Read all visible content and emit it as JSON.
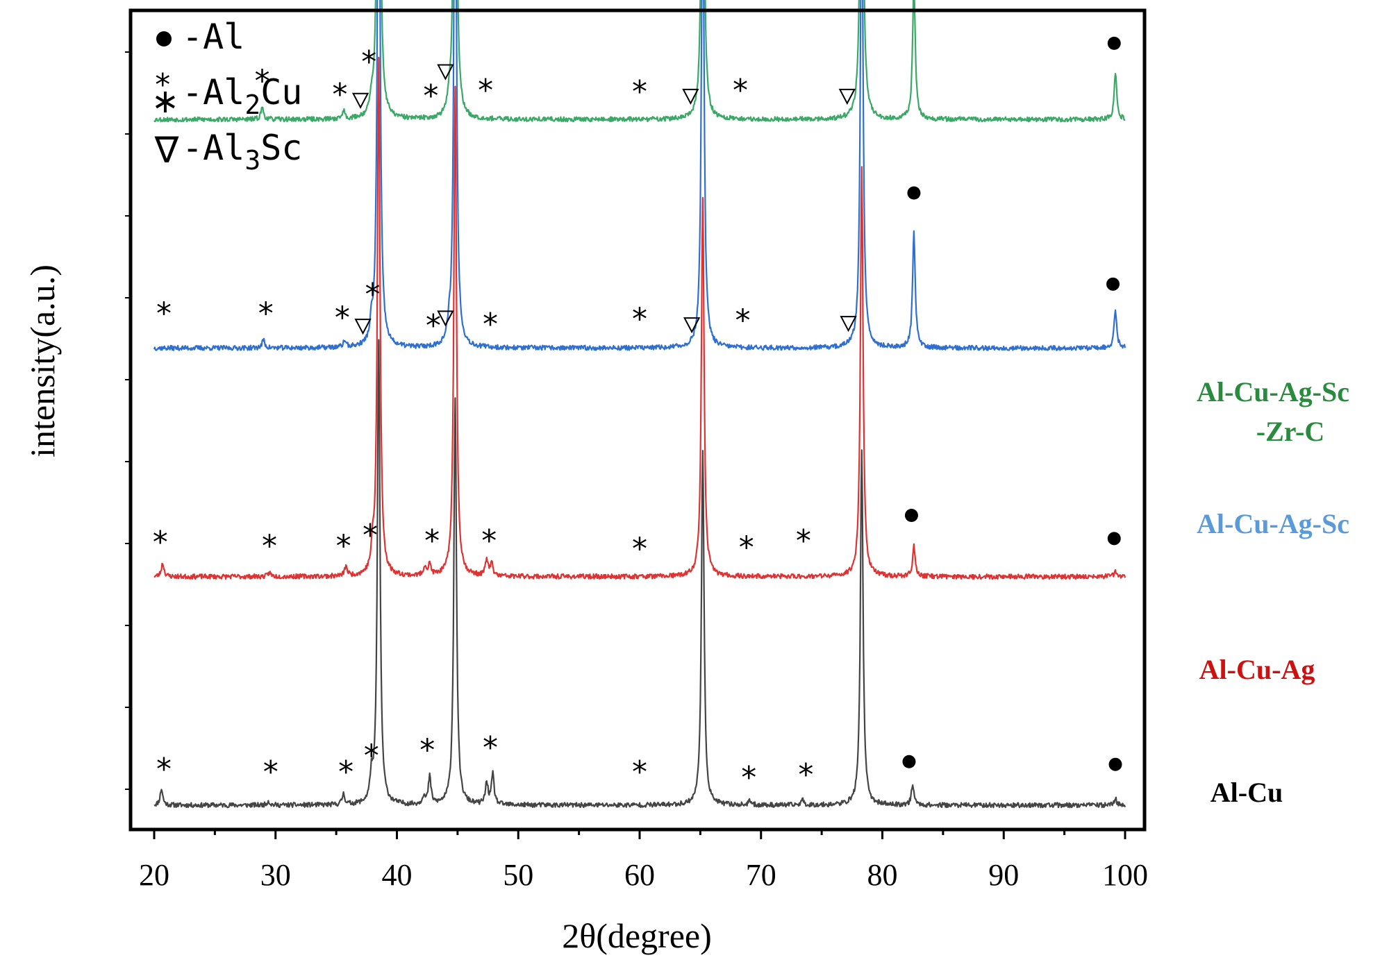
{
  "chart_data": {
    "type": "line",
    "title": "",
    "xlabel": "2θ(degree)",
    "ylabel": "intensity(a.u.)",
    "xlim": [
      18,
      102
    ],
    "x_ticks": [
      "20",
      "30",
      "40",
      "50",
      "60",
      "70",
      "80",
      "90",
      "100"
    ],
    "y_ticks_shown": false,
    "legend": {
      "placement": "top-left",
      "items": [
        {
          "symbol": "●",
          "text": "-Al",
          "sub": "",
          "tail": ""
        },
        {
          "symbol": "∗",
          "text": "-Al",
          "sub": "2",
          "tail": "Cu"
        },
        {
          "symbol": "∇",
          "text": "-Al",
          "sub": "3",
          "tail": "Sc"
        }
      ]
    },
    "series": [
      {
        "name": "Al-Cu",
        "color": "#444444",
        "label_lines": [
          "Al-Cu"
        ],
        "label_color": "#000000",
        "baseline": 0.0,
        "noise_seed": 11,
        "peaks": [
          {
            "x": 20.6,
            "h": 1.2
          },
          {
            "x": 29.4,
            "h": 0.3
          },
          {
            "x": 35.6,
            "h": 0.8
          },
          {
            "x": 37.9,
            "h": 1.8
          },
          {
            "x": 38.5,
            "h": 34.0
          },
          {
            "x": 42.2,
            "h": 0.6
          },
          {
            "x": 42.7,
            "h": 2.0
          },
          {
            "x": 44.8,
            "h": 30.0
          },
          {
            "x": 47.4,
            "h": 1.6
          },
          {
            "x": 47.9,
            "h": 2.2
          },
          {
            "x": 65.2,
            "h": 26.0
          },
          {
            "x": 69.1,
            "h": 0.3
          },
          {
            "x": 73.4,
            "h": 0.4
          },
          {
            "x": 78.3,
            "h": 26.0
          },
          {
            "x": 82.5,
            "h": 1.5
          },
          {
            "x": 99.2,
            "h": 0.5
          }
        ],
        "markers": [
          {
            "x": 20.8,
            "y": 2.8,
            "m": "star"
          },
          {
            "x": 29.6,
            "y": 2.6,
            "m": "star"
          },
          {
            "x": 35.8,
            "y": 2.6,
            "m": "star"
          },
          {
            "x": 37.9,
            "y": 3.8,
            "m": "star"
          },
          {
            "x": 42.5,
            "y": 4.2,
            "m": "star"
          },
          {
            "x": 47.7,
            "y": 4.4,
            "m": "star"
          },
          {
            "x": 60.0,
            "y": 2.6,
            "m": "star"
          },
          {
            "x": 69.0,
            "y": 2.2,
            "m": "star"
          },
          {
            "x": 73.7,
            "y": 2.4,
            "m": "star"
          },
          {
            "x": 82.2,
            "y": 3.2,
            "m": "dot"
          },
          {
            "x": 99.2,
            "y": 3.0,
            "m": "dot"
          }
        ]
      },
      {
        "name": "Al-Cu-Ag",
        "color": "#dd3333",
        "label_lines": [
          "Al-Cu-Ag"
        ],
        "label_color": "#cc1111",
        "baseline": 16.8,
        "noise_seed": 23,
        "peaks": [
          {
            "x": 20.7,
            "h": 1.0
          },
          {
            "x": 29.5,
            "h": 0.3
          },
          {
            "x": 35.8,
            "h": 0.7
          },
          {
            "x": 38.0,
            "h": 1.5
          },
          {
            "x": 38.5,
            "h": 38.0
          },
          {
            "x": 42.3,
            "h": 0.7
          },
          {
            "x": 42.7,
            "h": 0.8
          },
          {
            "x": 44.8,
            "h": 36.0
          },
          {
            "x": 47.4,
            "h": 1.2
          },
          {
            "x": 47.8,
            "h": 0.9
          },
          {
            "x": 65.2,
            "h": 28.0
          },
          {
            "x": 78.3,
            "h": 30.0
          },
          {
            "x": 82.6,
            "h": 2.2
          },
          {
            "x": 99.2,
            "h": 0.4
          }
        ],
        "markers": [
          {
            "x": 20.5,
            "y": 2.7,
            "m": "star"
          },
          {
            "x": 29.5,
            "y": 2.4,
            "m": "star"
          },
          {
            "x": 35.6,
            "y": 2.4,
            "m": "star"
          },
          {
            "x": 37.8,
            "y": 3.2,
            "m": "star"
          },
          {
            "x": 42.9,
            "y": 2.8,
            "m": "star"
          },
          {
            "x": 47.6,
            "y": 2.8,
            "m": "star"
          },
          {
            "x": 60.0,
            "y": 2.2,
            "m": "star"
          },
          {
            "x": 68.8,
            "y": 2.3,
            "m": "star"
          },
          {
            "x": 73.5,
            "y": 2.8,
            "m": "star"
          },
          {
            "x": 82.4,
            "y": 4.5,
            "m": "dot"
          },
          {
            "x": 99.1,
            "y": 2.8,
            "m": "dot"
          }
        ]
      },
      {
        "name": "Al-Cu-Ag-Sc",
        "color": "#2f6fd0",
        "label_lines": [
          "Al-Cu-Ag-Sc"
        ],
        "label_color": "#5a9ad8",
        "baseline": 33.6,
        "noise_seed": 37,
        "peaks": [
          {
            "x": 29.0,
            "h": 0.6
          },
          {
            "x": 35.7,
            "h": 0.5
          },
          {
            "x": 37.9,
            "h": 1.2
          },
          {
            "x": 38.5,
            "h": 45.0
          },
          {
            "x": 44.3,
            "h": 0.8
          },
          {
            "x": 44.8,
            "h": 42.0
          },
          {
            "x": 65.2,
            "h": 36.0
          },
          {
            "x": 78.3,
            "h": 36.0
          },
          {
            "x": 82.6,
            "h": 8.5
          },
          {
            "x": 99.2,
            "h": 2.8
          }
        ],
        "markers": [
          {
            "x": 20.8,
            "y": 2.7,
            "m": "star"
          },
          {
            "x": 29.2,
            "y": 2.7,
            "m": "star"
          },
          {
            "x": 35.5,
            "y": 2.4,
            "m": "star"
          },
          {
            "x": 38.0,
            "y": 4.1,
            "m": "star"
          },
          {
            "x": 43.0,
            "y": 1.8,
            "m": "star"
          },
          {
            "x": 47.7,
            "y": 1.9,
            "m": "star"
          },
          {
            "x": 60.0,
            "y": 2.3,
            "m": "star"
          },
          {
            "x": 68.5,
            "y": 2.2,
            "m": "star"
          },
          {
            "x": 37.2,
            "y": 1.6,
            "m": "tri"
          },
          {
            "x": 44.0,
            "y": 2.2,
            "m": "tri"
          },
          {
            "x": 64.3,
            "y": 1.7,
            "m": "tri"
          },
          {
            "x": 77.2,
            "y": 1.8,
            "m": "tri"
          },
          {
            "x": 82.6,
            "y": 11.4,
            "m": "dot"
          },
          {
            "x": 99.0,
            "y": 4.7,
            "m": "dot"
          }
        ]
      },
      {
        "name": "Al-Cu-Ag-Sc-Zr-C",
        "color": "#3aa866",
        "label_lines": [
          "Al-Cu-Ag-Sc",
          "-Zr-C"
        ],
        "label_color": "#2a8a3e",
        "baseline": 50.4,
        "noise_seed": 53,
        "peaks": [
          {
            "x": 28.9,
            "h": 0.9
          },
          {
            "x": 35.6,
            "h": 0.6
          },
          {
            "x": 37.9,
            "h": 1.0
          },
          {
            "x": 38.5,
            "h": 41.0
          },
          {
            "x": 44.3,
            "h": 1.0
          },
          {
            "x": 44.8,
            "h": 37.5
          },
          {
            "x": 65.2,
            "h": 31.0
          },
          {
            "x": 78.3,
            "h": 35.0
          },
          {
            "x": 82.6,
            "h": 10.0
          },
          {
            "x": 99.2,
            "h": 3.4
          }
        ],
        "markers": [
          {
            "x": 20.7,
            "y": 2.7,
            "m": "star"
          },
          {
            "x": 28.9,
            "y": 3.0,
            "m": "star"
          },
          {
            "x": 35.3,
            "y": 2.0,
            "m": "star"
          },
          {
            "x": 37.7,
            "y": 4.4,
            "m": "star"
          },
          {
            "x": 42.8,
            "y": 1.9,
            "m": "star"
          },
          {
            "x": 47.3,
            "y": 2.3,
            "m": "star"
          },
          {
            "x": 60.0,
            "y": 2.2,
            "m": "star"
          },
          {
            "x": 68.3,
            "y": 2.3,
            "m": "star"
          },
          {
            "x": 37.0,
            "y": 1.4,
            "m": "tri"
          },
          {
            "x": 44.0,
            "y": 3.5,
            "m": "tri"
          },
          {
            "x": 64.2,
            "y": 1.7,
            "m": "tri"
          },
          {
            "x": 77.1,
            "y": 1.7,
            "m": "tri"
          },
          {
            "x": 38.5,
            "y": 42.8,
            "m": "dot"
          },
          {
            "x": 44.6,
            "y": 39.2,
            "m": "dot"
          },
          {
            "x": 65.0,
            "y": 32.8,
            "m": "dot"
          },
          {
            "x": 78.3,
            "y": 36.8,
            "m": "dot"
          },
          {
            "x": 82.6,
            "y": 12.2,
            "m": "dot"
          },
          {
            "x": 99.1,
            "y": 5.6,
            "m": "dot"
          }
        ]
      }
    ]
  }
}
